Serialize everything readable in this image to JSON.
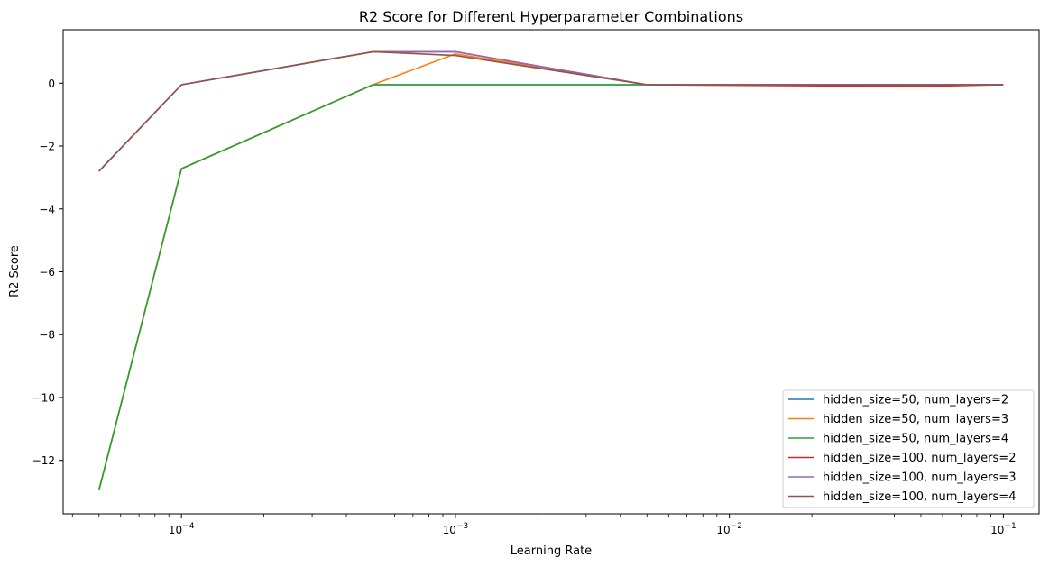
{
  "chart_data": {
    "type": "line",
    "title": "R2 Score for Different Hyperparameter Combinations",
    "xlabel": "Learning Rate",
    "ylabel": "R2 Score",
    "xscale": "log",
    "xlim": [
      3.7e-05,
      0.135
    ],
    "ylim": [
      -13.7,
      1.7
    ],
    "x": [
      5e-05,
      0.0001,
      0.0005,
      0.001,
      0.005,
      0.05,
      0.1
    ],
    "x_ticks": [
      {
        "value": 0.0001,
        "base": "10",
        "exp": "−4"
      },
      {
        "value": 0.001,
        "base": "10",
        "exp": "−3"
      },
      {
        "value": 0.01,
        "base": "10",
        "exp": "−2"
      },
      {
        "value": 0.1,
        "base": "10",
        "exp": "−1"
      }
    ],
    "y_ticks": [
      {
        "value": 0,
        "label": "0"
      },
      {
        "value": -2,
        "label": "−2"
      },
      {
        "value": -4,
        "label": "−4"
      },
      {
        "value": -6,
        "label": "−6"
      },
      {
        "value": -8,
        "label": "−8"
      },
      {
        "value": -10,
        "label": "−10"
      },
      {
        "value": -12,
        "label": "−12"
      }
    ],
    "legend_position": "lower-right",
    "grid": false,
    "series": [
      {
        "name": "hidden_size=50, num_layers=2",
        "color": "#1f77b4",
        "values": [
          -12.95,
          -2.72,
          -0.05,
          -0.05,
          -0.05,
          -0.05,
          -0.05
        ]
      },
      {
        "name": "hidden_size=50, num_layers=3",
        "color": "#ff7f0e",
        "values": [
          -12.95,
          -2.72,
          -0.05,
          0.93,
          -0.05,
          -0.05,
          -0.05
        ]
      },
      {
        "name": "hidden_size=50, num_layers=4",
        "color": "#2ca02c",
        "values": [
          -12.95,
          -2.72,
          -0.05,
          -0.05,
          -0.05,
          -0.05,
          -0.05
        ]
      },
      {
        "name": "hidden_size=100, num_layers=2",
        "color": "#d62728",
        "values": [
          -2.8,
          -0.05,
          1.0,
          1.0,
          -0.05,
          -0.1,
          -0.05
        ]
      },
      {
        "name": "hidden_size=100, num_layers=3",
        "color": "#9467bd",
        "values": [
          -2.8,
          -0.05,
          1.0,
          1.0,
          -0.05,
          -0.05,
          -0.05
        ]
      },
      {
        "name": "hidden_size=100, num_layers=4",
        "color": "#8c564b",
        "values": [
          -2.8,
          -0.05,
          1.0,
          0.88,
          -0.05,
          -0.05,
          -0.05
        ]
      }
    ]
  }
}
